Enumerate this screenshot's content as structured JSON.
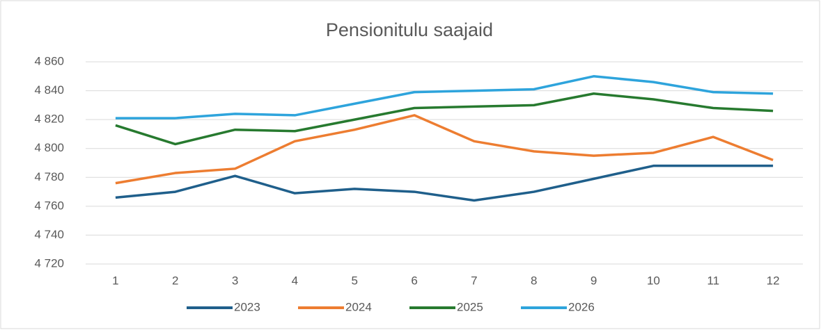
{
  "chart_data": {
    "type": "line",
    "title": "Pensionitulu saajaid",
    "categories": [
      "1",
      "2",
      "3",
      "4",
      "5",
      "6",
      "7",
      "8",
      "9",
      "10",
      "11",
      "12"
    ],
    "series": [
      {
        "name": "2023",
        "color": "#1f5f8b",
        "values": [
          4766,
          4770,
          4781,
          4769,
          4772,
          4770,
          4764,
          4770,
          4779,
          4788,
          4788,
          4788
        ]
      },
      {
        "name": "2024",
        "color": "#ed7d31",
        "values": [
          4776,
          4783,
          4786,
          4805,
          4813,
          4823,
          4805,
          4798,
          4795,
          4797,
          4808,
          4792
        ]
      },
      {
        "name": "2025",
        "color": "#277a2f",
        "values": [
          4816,
          4803,
          4813,
          4812,
          4820,
          4828,
          4829,
          4830,
          4838,
          4834,
          4828,
          4826
        ]
      },
      {
        "name": "2026",
        "color": "#2ea4dc",
        "values": [
          4821,
          4821,
          4824,
          4823,
          4831,
          4839,
          4840,
          4841,
          4850,
          4846,
          4839,
          4838
        ]
      }
    ],
    "ylim": [
      4720,
      4860
    ],
    "yticks": [
      {
        "value": 4720,
        "label": "4 720"
      },
      {
        "value": 4740,
        "label": "4 740"
      },
      {
        "value": 4760,
        "label": "4 760"
      },
      {
        "value": 4780,
        "label": "4 780"
      },
      {
        "value": 4800,
        "label": "4 800"
      },
      {
        "value": 4820,
        "label": "4 820"
      },
      {
        "value": 4840,
        "label": "4 840"
      },
      {
        "value": 4860,
        "label": "4 860"
      }
    ],
    "grid": true,
    "legend": "bottom"
  }
}
